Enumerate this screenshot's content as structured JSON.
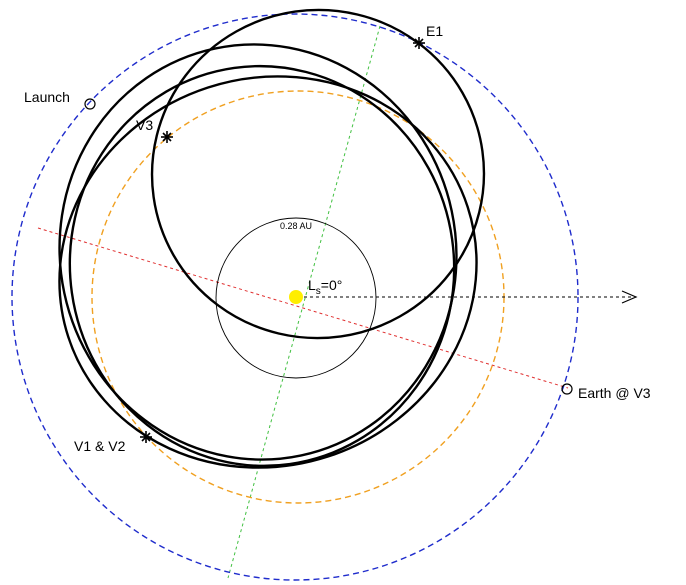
{
  "labels": {
    "launch": "Launch",
    "v3": "V3",
    "e1": "E1",
    "v1v2": "V1 & V2",
    "earth_v3": "Earth @ V3",
    "radius": "0.28 AU",
    "ls_main": "L",
    "ls_sub": "s",
    "ls_value": "=0°"
  },
  "colors": {
    "earth_orbit": "#1f2ccc",
    "venus_orbit": "#f0a020",
    "sun": "#ffee00",
    "apsidal_line": "#e03030",
    "node_line": "#40c040",
    "trajectory": "#000000"
  },
  "icons": {
    "event_marker": "asterisk-icon",
    "position_marker": "circle-marker-icon",
    "direction": "arrowhead-icon"
  }
}
